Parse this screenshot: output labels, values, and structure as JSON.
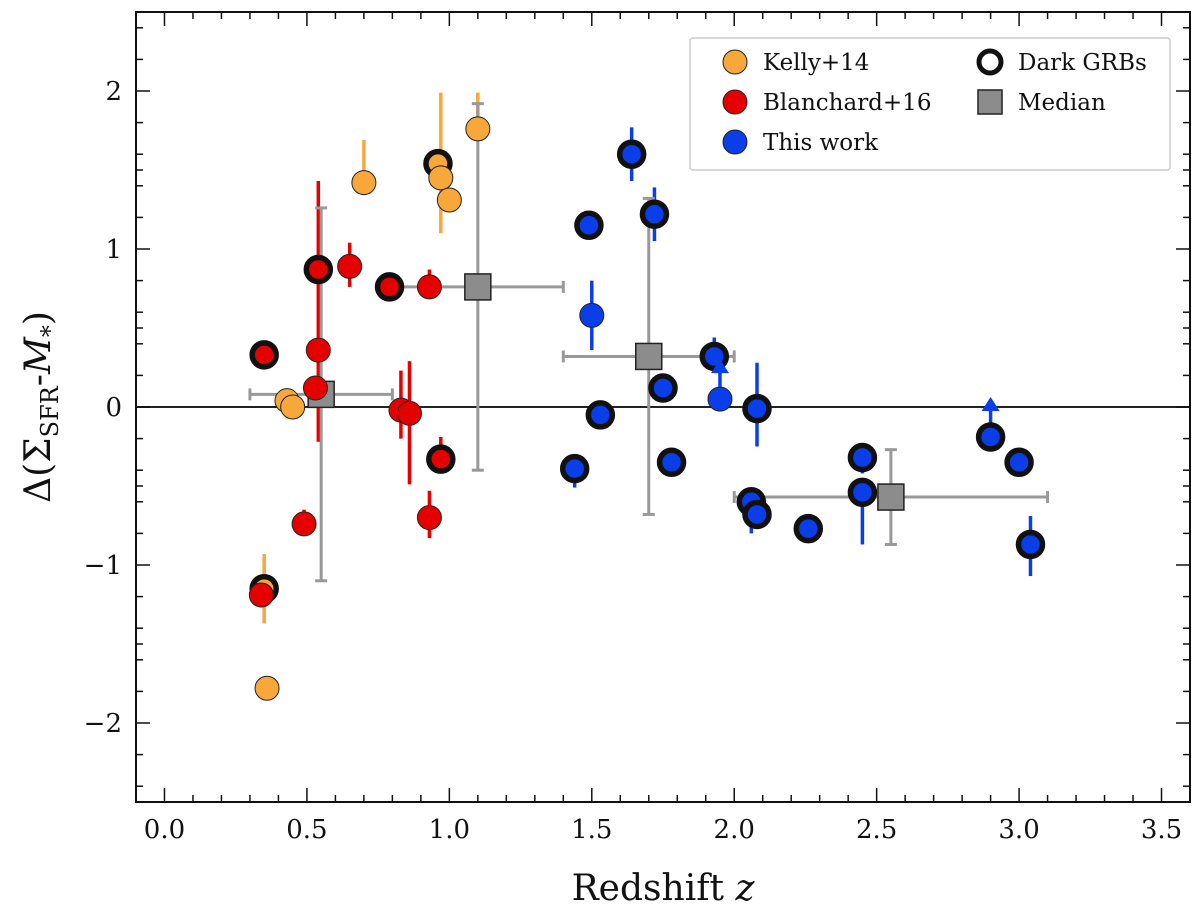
{
  "chart_data": {
    "type": "scatter",
    "xlabel": "Redshift z",
    "ylabel": "Δ(Σ_SFR-M_*)",
    "xlim": [
      -0.1,
      3.6
    ],
    "ylim": [
      -2.5,
      2.5
    ],
    "xticks": [
      0.0,
      0.5,
      1.0,
      1.5,
      2.0,
      2.5,
      3.0,
      3.5
    ],
    "xtick_labels": [
      "0.0",
      "0.5",
      "1.0",
      "1.5",
      "2.0",
      "2.5",
      "3.0",
      "3.5"
    ],
    "yticks": [
      -2,
      -1,
      0,
      1,
      2
    ],
    "ytick_labels": [
      "−2",
      "−1",
      "0",
      "1",
      "2"
    ],
    "reference_line_y": 0,
    "legend_position": "top-right",
    "legend": [
      {
        "label": "Kelly+14",
        "kind": "circle",
        "color": "#f8a73a"
      },
      {
        "label": "Blanchard+16",
        "kind": "circle",
        "color": "#e50000"
      },
      {
        "label": "This work",
        "kind": "circle",
        "color": "#0a3ee8"
      },
      {
        "label": "Dark GRBs",
        "kind": "ring",
        "color": "#111111"
      },
      {
        "label": "Median",
        "kind": "square",
        "color": "#8c8c8c"
      }
    ],
    "series": [
      {
        "name": "Kelly+14",
        "color": "#f8a73a",
        "points": [
          {
            "x": 0.35,
            "y": -1.15,
            "yerr": [
              0.22,
              0.22
            ],
            "dark": true
          },
          {
            "x": 0.36,
            "y": -1.78,
            "dark": false
          },
          {
            "x": 0.43,
            "y": 0.04,
            "dark": false
          },
          {
            "x": 0.45,
            "y": 0.0,
            "dark": false
          },
          {
            "x": 0.7,
            "y": 1.42,
            "yerr": [
              0.08,
              0.27
            ],
            "dark": false
          },
          {
            "x": 0.96,
            "y": 1.54,
            "dark": true
          },
          {
            "x": 0.97,
            "y": 1.45,
            "yerr": [
              0.35,
              0.54
            ],
            "dark": false
          },
          {
            "x": 1.0,
            "y": 1.31,
            "dark": false
          },
          {
            "x": 1.1,
            "y": 1.76,
            "yerr": [
              0.0,
              0.23
            ],
            "dark": false
          }
        ]
      },
      {
        "name": "Blanchard+16",
        "color": "#e50000",
        "points": [
          {
            "x": 0.34,
            "y": -1.19,
            "dark": false
          },
          {
            "x": 0.35,
            "y": 0.33,
            "dark": true
          },
          {
            "x": 0.49,
            "y": -0.74,
            "yerr": [
              0.0,
              0.09
            ],
            "dark": false
          },
          {
            "x": 0.53,
            "y": 0.12,
            "dark": false
          },
          {
            "x": 0.54,
            "y": 0.36,
            "yerr": [
              0.58,
              1.07
            ],
            "dark": false
          },
          {
            "x": 0.54,
            "y": 0.87,
            "dark": true
          },
          {
            "x": 0.65,
            "y": 0.89,
            "yerr": [
              0.13,
              0.15
            ],
            "dark": false
          },
          {
            "x": 0.79,
            "y": 0.76,
            "dark": true
          },
          {
            "x": 0.83,
            "y": -0.02,
            "yerr": [
              0.18,
              0.25
            ],
            "dark": false
          },
          {
            "x": 0.86,
            "y": -0.04,
            "yerr": [
              0.45,
              0.33
            ],
            "dark": false
          },
          {
            "x": 0.93,
            "y": 0.76,
            "yerr": [
              0.0,
              0.11
            ],
            "dark": false
          },
          {
            "x": 0.93,
            "y": -0.7,
            "yerr": [
              0.13,
              0.17
            ],
            "dark": false
          },
          {
            "x": 0.97,
            "y": -0.33,
            "yerr": [
              0.0,
              0.14
            ],
            "dark": true
          }
        ]
      },
      {
        "name": "This work",
        "color": "#0a3ee8",
        "points": [
          {
            "x": 1.44,
            "y": -0.39,
            "yerr": [
              0.12,
              0.0
            ],
            "dark": true
          },
          {
            "x": 1.49,
            "y": 1.15,
            "dark": true
          },
          {
            "x": 1.5,
            "y": 0.58,
            "yerr": [
              0.22,
              0.22
            ],
            "dark": false
          },
          {
            "x": 1.53,
            "y": -0.05,
            "dark": true
          },
          {
            "x": 1.64,
            "y": 1.6,
            "yerr": [
              0.17,
              0.17
            ],
            "dark": true
          },
          {
            "x": 1.72,
            "y": 1.22,
            "yerr": [
              0.17,
              0.17
            ],
            "dark": true
          },
          {
            "x": 1.75,
            "y": 0.12,
            "dark": true
          },
          {
            "x": 1.78,
            "y": -0.35,
            "dark": true
          },
          {
            "x": 1.93,
            "y": 0.32,
            "yerr": [
              0.0,
              0.12
            ],
            "dark": true
          },
          {
            "x": 1.95,
            "y": 0.05,
            "lower_limit": true,
            "dark": false
          },
          {
            "x": 2.06,
            "y": -0.6,
            "yerr": [
              0.2,
              0.0
            ],
            "dark": true
          },
          {
            "x": 2.08,
            "y": -0.68,
            "dark": true
          },
          {
            "x": 2.08,
            "y": -0.01,
            "yerr": [
              0.24,
              0.29
            ],
            "dark": true
          },
          {
            "x": 2.26,
            "y": -0.77,
            "dark": true
          },
          {
            "x": 2.45,
            "y": -0.32,
            "yerr": [
              0.1,
              0.0
            ],
            "dark": true
          },
          {
            "x": 2.45,
            "y": -0.54,
            "yerr": [
              0.33,
              0.0
            ],
            "dark": true
          },
          {
            "x": 2.9,
            "y": -0.19,
            "lower_limit": true,
            "dark": true
          },
          {
            "x": 3.0,
            "y": -0.35,
            "dark": true
          },
          {
            "x": 3.04,
            "y": -0.87,
            "yerr": [
              0.2,
              0.18
            ],
            "dark": true
          }
        ]
      },
      {
        "name": "Median",
        "color": "#8c8c8c",
        "points": [
          {
            "x": 0.55,
            "y": 0.08,
            "xerr": [
              0.25,
              0.25
            ],
            "yerr": [
              1.18,
              1.18
            ]
          },
          {
            "x": 1.1,
            "y": 0.76,
            "xerr": [
              0.3,
              0.3
            ],
            "yerr": [
              1.16,
              1.16
            ]
          },
          {
            "x": 1.7,
            "y": 0.32,
            "xerr": [
              0.3,
              0.3
            ],
            "yerr": [
              1.0,
              1.0
            ]
          },
          {
            "x": 2.55,
            "y": -0.57,
            "xerr": [
              0.55,
              0.55
            ],
            "yerr": [
              0.3,
              0.3
            ]
          }
        ]
      }
    ]
  }
}
